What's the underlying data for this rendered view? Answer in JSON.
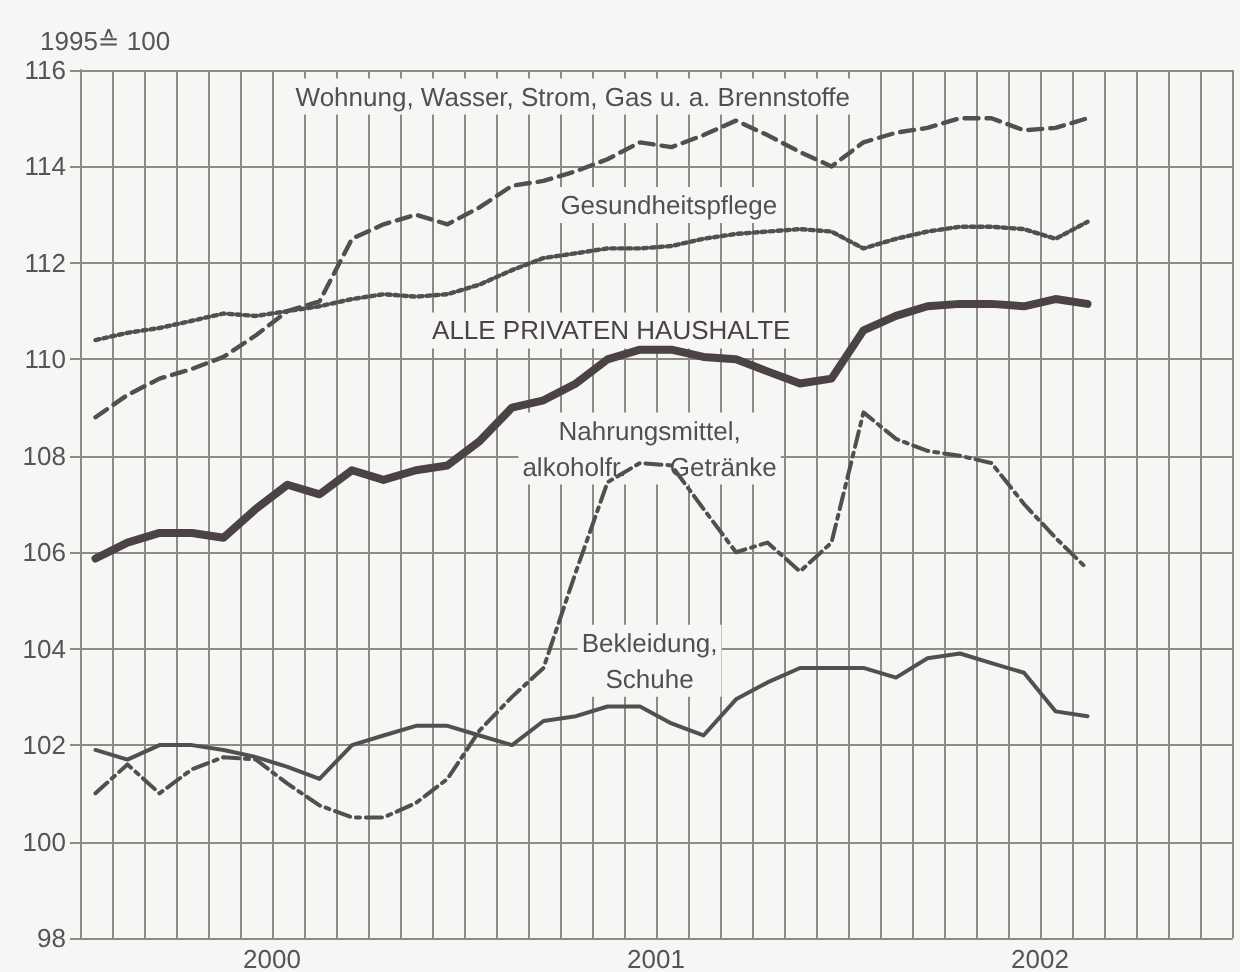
{
  "chart_data": {
    "type": "line",
    "ylabel": "1995≙ 100",
    "x": [
      "2000-01-16",
      "2000-02-15",
      "2000-03-16",
      "2000-04-16",
      "2000-05-16",
      "2000-06-16",
      "2000-07-16",
      "2000-08-16",
      "2000-09-16",
      "2000-10-16",
      "2000-11-16",
      "2000-12-16",
      "2001-01-16",
      "2001-02-15",
      "2001-03-16",
      "2001-04-16",
      "2001-05-16",
      "2001-06-16",
      "2001-07-16",
      "2001-08-16",
      "2001-09-16",
      "2001-10-16",
      "2001-11-16",
      "2001-12-16",
      "2002-01-16",
      "2002-02-15",
      "2002-03-16",
      "2002-04-16",
      "2002-05-16",
      "2002-06-16",
      "2002-07-16",
      "2002-08-16"
    ],
    "xlim": [
      "2000-01-01",
      "2003-01-01"
    ],
    "xticks": [
      {
        "value": "2000-01-01",
        "label": null
      },
      {
        "value": "2000-02-01",
        "label": null
      },
      {
        "value": "2000-03-01",
        "label": null
      },
      {
        "value": "2000-04-01",
        "label": null
      },
      {
        "value": "2000-05-01",
        "label": null
      },
      {
        "value": "2000-06-01",
        "label": null
      },
      {
        "value": "2000-07-01",
        "label": "2000"
      },
      {
        "value": "2000-08-01",
        "label": null
      },
      {
        "value": "2000-09-01",
        "label": null
      },
      {
        "value": "2000-10-01",
        "label": null
      },
      {
        "value": "2000-11-01",
        "label": null
      },
      {
        "value": "2000-12-01",
        "label": null
      },
      {
        "value": "2001-01-01",
        "label": null
      },
      {
        "value": "2001-02-01",
        "label": null
      },
      {
        "value": "2001-03-01",
        "label": null
      },
      {
        "value": "2001-04-01",
        "label": null
      },
      {
        "value": "2001-05-01",
        "label": null
      },
      {
        "value": "2001-06-01",
        "label": null
      },
      {
        "value": "2001-07-01",
        "label": "2001"
      },
      {
        "value": "2001-08-01",
        "label": null
      },
      {
        "value": "2001-09-01",
        "label": null
      },
      {
        "value": "2001-10-01",
        "label": null
      },
      {
        "value": "2001-11-01",
        "label": null
      },
      {
        "value": "2001-12-01",
        "label": null
      },
      {
        "value": "2002-01-01",
        "label": null
      },
      {
        "value": "2002-02-01",
        "label": null
      },
      {
        "value": "2002-03-01",
        "label": null
      },
      {
        "value": "2002-04-01",
        "label": null
      },
      {
        "value": "2002-05-01",
        "label": null
      },
      {
        "value": "2002-06-01",
        "label": null
      },
      {
        "value": "2002-07-01",
        "label": "2002"
      },
      {
        "value": "2002-08-01",
        "label": null
      },
      {
        "value": "2002-09-01",
        "label": null
      },
      {
        "value": "2002-10-01",
        "label": null
      },
      {
        "value": "2002-11-01",
        "label": null
      },
      {
        "value": "2002-12-01",
        "label": null
      },
      {
        "value": "2003-01-01",
        "label": null
      }
    ],
    "ylim": [
      98,
      116
    ],
    "yticks": [
      98,
      100,
      102,
      104,
      106,
      108,
      110,
      112,
      114,
      116
    ],
    "grid": true,
    "legend": false,
    "marker": "none",
    "series": [
      {
        "name": "ALLE PRIVATEN HAUSHALTE",
        "color": "#4a4244",
        "line_style": "solid",
        "values": [
          105.87,
          106.2,
          106.4,
          106.4,
          106.3,
          106.9,
          107.4,
          107.2,
          107.7,
          107.5,
          107.7,
          107.8,
          108.3,
          109.0,
          109.15,
          109.5,
          110.0,
          110.2,
          110.2,
          110.05,
          110.0,
          109.75,
          109.5,
          109.6,
          110.6,
          110.9,
          111.1,
          111.15,
          111.15,
          111.1,
          111.25,
          111.15
        ]
      },
      {
        "name": "Wohnung, Wasser, Strom, Gas u. a. Brennstoffe",
        "color": "#505050",
        "line_style": "dashed",
        "values": [
          108.8,
          109.26,
          109.6,
          109.8,
          110.05,
          110.5,
          111.0,
          111.2,
          112.5,
          112.8,
          113.0,
          112.8,
          113.15,
          113.6,
          113.7,
          113.9,
          114.15,
          114.5,
          114.4,
          114.65,
          114.95,
          114.65,
          114.3,
          114.0,
          114.5,
          114.7,
          114.8,
          115.0,
          115.0,
          114.75,
          114.8,
          115.0
        ]
      },
      {
        "name": "Gesundheitspflege",
        "color": "#505050",
        "line_style": "dotted",
        "values": [
          110.4,
          110.55,
          110.65,
          110.8,
          110.95,
          110.9,
          111.0,
          111.1,
          111.25,
          111.35,
          111.3,
          111.35,
          111.55,
          111.85,
          112.1,
          112.2,
          112.3,
          112.3,
          112.35,
          112.5,
          112.6,
          112.65,
          112.7,
          112.65,
          112.3,
          112.5,
          112.65,
          112.75,
          112.75,
          112.7,
          112.5,
          112.85
        ]
      },
      {
        "name": "Nahrungsmittel,\nalkoholfr.      Getränke",
        "color": "#505050",
        "line_style": "dashdot",
        "values": [
          101.0,
          101.6,
          101.0,
          101.5,
          101.75,
          101.7,
          101.2,
          100.75,
          100.5,
          100.5,
          100.8,
          101.3,
          102.3,
          103.0,
          103.6,
          105.6,
          107.45,
          107.85,
          107.8,
          106.9,
          106.0,
          106.2,
          105.6,
          106.2,
          108.9,
          108.35,
          108.1,
          108.0,
          107.85,
          107.0,
          106.3,
          105.65
        ]
      },
      {
        "name": "Bekleidung,\nSchuhe",
        "color": "#505050",
        "line_style": "solid",
        "values": [
          101.9,
          101.7,
          102.0,
          102.0,
          101.9,
          101.75,
          101.55,
          101.3,
          102.0,
          102.2,
          102.4,
          102.4,
          102.2,
          102.0,
          102.5,
          102.6,
          102.8,
          102.8,
          102.45,
          102.2,
          102.95,
          103.3,
          103.6,
          103.6,
          103.6,
          103.4,
          103.8,
          103.9,
          103.7,
          103.5,
          102.7,
          102.6
        ]
      }
    ]
  }
}
